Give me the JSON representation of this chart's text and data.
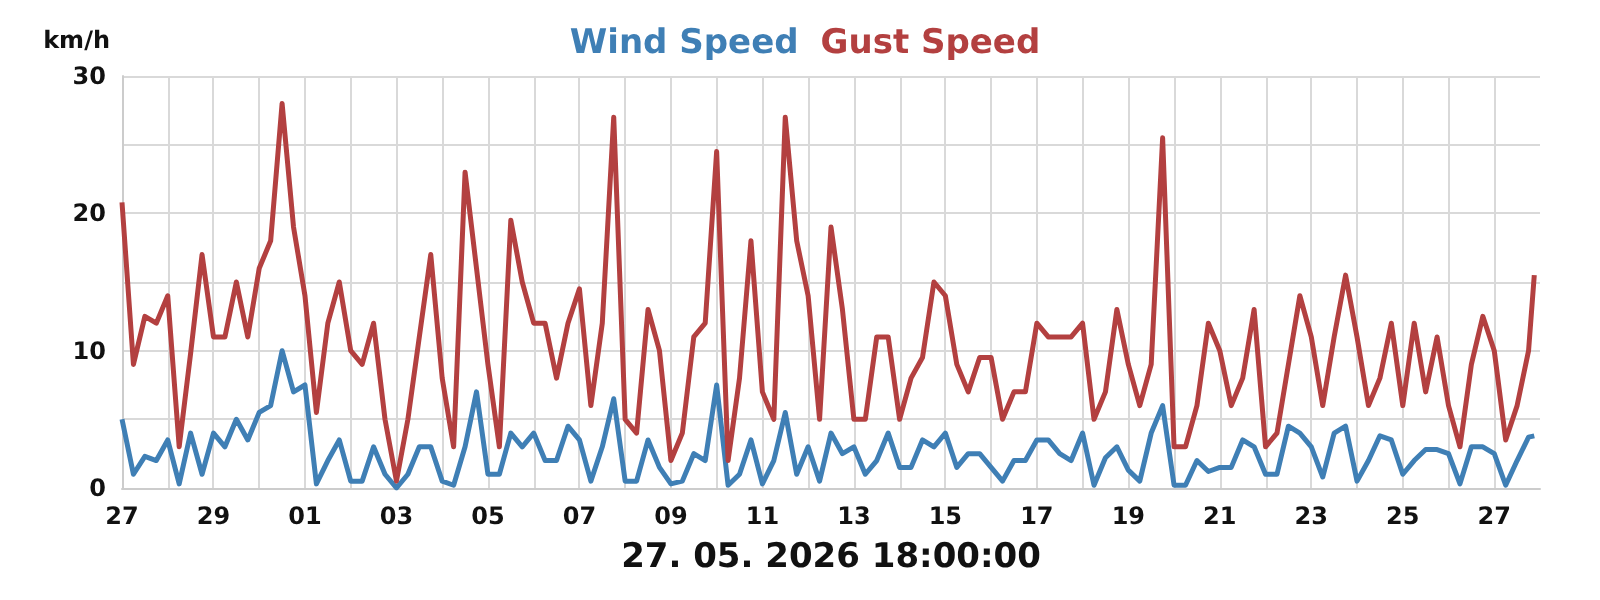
{
  "chart_data": {
    "type": "line",
    "title": null,
    "ylabel": "km/h",
    "xlabel": "27. 05. 2026 18:00:00",
    "legend": "top",
    "grid": true,
    "marker": "none",
    "line_style": "solid",
    "xlim": [
      "2026-04-27",
      "2026-05-28"
    ],
    "ylim": [
      0,
      30
    ],
    "yticks": [
      0,
      {
        "value": 5,
        "label": null
      },
      10,
      {
        "value": 15,
        "label": null
      },
      20,
      {
        "value": 25,
        "label": null
      },
      30
    ],
    "xticks": [
      {
        "value": "2026-04-27",
        "label": "27"
      },
      {
        "value": "2026-04-28",
        "label": null
      },
      {
        "value": "2026-04-29",
        "label": "29"
      },
      {
        "value": "2026-04-30",
        "label": null
      },
      {
        "value": "2026-05-01",
        "label": "01"
      },
      {
        "value": "2026-05-02",
        "label": null
      },
      {
        "value": "2026-05-03",
        "label": "03"
      },
      {
        "value": "2026-05-04",
        "label": null
      },
      {
        "value": "2026-05-05",
        "label": "05"
      },
      {
        "value": "2026-05-06",
        "label": null
      },
      {
        "value": "2026-05-07",
        "label": "07"
      },
      {
        "value": "2026-05-08",
        "label": null
      },
      {
        "value": "2026-05-09",
        "label": "09"
      },
      {
        "value": "2026-05-10",
        "label": null
      },
      {
        "value": "2026-05-11",
        "label": "11"
      },
      {
        "value": "2026-05-12",
        "label": null
      },
      {
        "value": "2026-05-13",
        "label": "13"
      },
      {
        "value": "2026-05-14",
        "label": null
      },
      {
        "value": "2026-05-15",
        "label": "15"
      },
      {
        "value": "2026-05-16",
        "label": null
      },
      {
        "value": "2026-05-17",
        "label": "17"
      },
      {
        "value": "2026-05-18",
        "label": null
      },
      {
        "value": "2026-05-19",
        "label": "19"
      },
      {
        "value": "2026-05-20",
        "label": null
      },
      {
        "value": "2026-05-21",
        "label": "21"
      },
      {
        "value": "2026-05-22",
        "label": null
      },
      {
        "value": "2026-05-23",
        "label": "23"
      },
      {
        "value": "2026-05-24",
        "label": null
      },
      {
        "value": "2026-05-25",
        "label": "25"
      },
      {
        "value": "2026-05-26",
        "label": null
      },
      {
        "value": "2026-05-27",
        "label": "27"
      }
    ],
    "x": [
      "2026-04-27T00:00",
      "2026-04-27T06:00",
      "2026-04-27T12:00",
      "2026-04-27T18:00",
      "2026-04-28T00:00",
      "2026-04-28T06:00",
      "2026-04-28T12:00",
      "2026-04-28T18:00",
      "2026-04-29T00:00",
      "2026-04-29T06:00",
      "2026-04-29T12:00",
      "2026-04-29T18:00",
      "2026-04-30T00:00",
      "2026-04-30T06:00",
      "2026-04-30T12:00",
      "2026-04-30T18:00",
      "2026-05-01T00:00",
      "2026-05-01T06:00",
      "2026-05-01T12:00",
      "2026-05-01T18:00",
      "2026-05-02T00:00",
      "2026-05-02T06:00",
      "2026-05-02T12:00",
      "2026-05-02T18:00",
      "2026-05-03T00:00",
      "2026-05-03T06:00",
      "2026-05-03T12:00",
      "2026-05-03T18:00",
      "2026-05-04T00:00",
      "2026-05-04T06:00",
      "2026-05-04T12:00",
      "2026-05-04T18:00",
      "2026-05-05T00:00",
      "2026-05-05T06:00",
      "2026-05-05T12:00",
      "2026-05-05T18:00",
      "2026-05-06T00:00",
      "2026-05-06T06:00",
      "2026-05-06T12:00",
      "2026-05-06T18:00",
      "2026-05-07T00:00",
      "2026-05-07T06:00",
      "2026-05-07T12:00",
      "2026-05-07T18:00",
      "2026-05-08T00:00",
      "2026-05-08T06:00",
      "2026-05-08T12:00",
      "2026-05-08T18:00",
      "2026-05-09T00:00",
      "2026-05-09T06:00",
      "2026-05-09T12:00",
      "2026-05-09T18:00",
      "2026-05-10T00:00",
      "2026-05-10T06:00",
      "2026-05-10T12:00",
      "2026-05-10T18:00",
      "2026-05-11T00:00",
      "2026-05-11T06:00",
      "2026-05-11T12:00",
      "2026-05-11T18:00",
      "2026-05-12T00:00",
      "2026-05-12T06:00",
      "2026-05-12T12:00",
      "2026-05-12T18:00",
      "2026-05-13T00:00",
      "2026-05-13T06:00",
      "2026-05-13T12:00",
      "2026-05-13T18:00",
      "2026-05-14T00:00",
      "2026-05-14T06:00",
      "2026-05-14T12:00",
      "2026-05-14T18:00",
      "2026-05-15T00:00",
      "2026-05-15T06:00",
      "2026-05-15T12:00",
      "2026-05-15T18:00",
      "2026-05-16T00:00",
      "2026-05-16T06:00",
      "2026-05-16T12:00",
      "2026-05-16T18:00",
      "2026-05-17T00:00",
      "2026-05-17T06:00",
      "2026-05-17T12:00",
      "2026-05-17T18:00",
      "2026-05-18T00:00",
      "2026-05-18T06:00",
      "2026-05-18T12:00",
      "2026-05-18T18:00",
      "2026-05-19T00:00",
      "2026-05-19T06:00",
      "2026-05-19T12:00",
      "2026-05-19T18:00",
      "2026-05-20T00:00",
      "2026-05-20T06:00",
      "2026-05-20T12:00",
      "2026-05-20T18:00",
      "2026-05-21T00:00",
      "2026-05-21T06:00",
      "2026-05-21T12:00",
      "2026-05-21T18:00",
      "2026-05-22T00:00",
      "2026-05-22T06:00",
      "2026-05-22T12:00",
      "2026-05-22T18:00",
      "2026-05-23T00:00",
      "2026-05-23T06:00",
      "2026-05-23T12:00",
      "2026-05-23T18:00",
      "2026-05-24T00:00",
      "2026-05-24T06:00",
      "2026-05-24T12:00",
      "2026-05-24T18:00",
      "2026-05-25T00:00",
      "2026-05-25T06:00",
      "2026-05-25T12:00",
      "2026-05-25T18:00",
      "2026-05-26T00:00",
      "2026-05-26T06:00",
      "2026-05-26T12:00",
      "2026-05-26T18:00",
      "2026-05-27T00:00",
      "2026-05-27T06:00",
      "2026-05-27T12:00",
      "2026-05-27T18:00",
      "2026-05-27T21:00"
    ],
    "series": [
      {
        "name": "Wind Speed",
        "color": "#3f7fb5",
        "values": [
          5,
          1,
          2.3,
          2,
          3.5,
          0.3,
          4,
          1,
          4,
          3,
          5,
          3.5,
          5.5,
          6,
          10,
          7,
          7.5,
          0.3,
          2,
          3.5,
          0.5,
          0.5,
          3,
          1,
          0,
          1,
          3,
          3,
          0.5,
          0.2,
          3,
          7,
          1,
          1,
          4,
          3,
          4,
          2,
          2,
          4.5,
          3.5,
          0.5,
          3,
          6.5,
          0.5,
          0.5,
          3.5,
          1.5,
          0.3,
          0.5,
          2.5,
          2,
          7.5,
          0.2,
          1,
          3.5,
          0.3,
          2,
          5.5,
          1,
          3,
          0.5,
          4,
          2.5,
          3,
          1,
          2,
          4,
          1.5,
          1.5,
          3.5,
          3,
          4,
          1.5,
          2.5,
          2.5,
          1.5,
          0.5,
          2,
          2,
          3.5,
          3.5,
          2.5,
          2,
          4,
          0.2,
          2.2,
          3,
          1.3,
          0.5,
          4,
          6,
          0.2,
          0.2,
          2,
          1.2,
          1.5,
          1.5,
          3.5,
          3,
          1,
          1,
          4.5,
          4,
          3,
          0.8,
          4,
          4.5,
          0.5,
          2,
          3.8,
          3.5,
          1,
          2,
          2.8,
          2.8,
          2.5,
          0.3,
          3,
          3,
          2.5,
          0.2,
          2,
          3.7,
          3.8
        ]
      },
      {
        "name": "Gust Speed",
        "color": "#b34040",
        "values": [
          20.8,
          9,
          12.5,
          12,
          14,
          3,
          9.8,
          17,
          11,
          11,
          15,
          11,
          16,
          18,
          28,
          19,
          14,
          5.5,
          12,
          15,
          10,
          9,
          12,
          5,
          0.5,
          5,
          11,
          17,
          8,
          3,
          23,
          16,
          9,
          3,
          19.5,
          15,
          12,
          12,
          8,
          12,
          14.5,
          6,
          12,
          27,
          5,
          4,
          13,
          10,
          2,
          4,
          11,
          12,
          24.5,
          2,
          8,
          18,
          7,
          5,
          27,
          18,
          14,
          5,
          19,
          13,
          5,
          5,
          11,
          11,
          5,
          8,
          9.5,
          15,
          14,
          9,
          7,
          9.5,
          9.5,
          5,
          7,
          7,
          12,
          11,
          11,
          11,
          12,
          5,
          7,
          13,
          9,
          6,
          9,
          25.5,
          3,
          3,
          6,
          12,
          10,
          6,
          8,
          13,
          3,
          4,
          9,
          14,
          11,
          6,
          11,
          15.5,
          11,
          6,
          8,
          12,
          6,
          12,
          7,
          11,
          6,
          3,
          9,
          12.5,
          10,
          3.5,
          6,
          10,
          15.5
        ]
      }
    ]
  }
}
